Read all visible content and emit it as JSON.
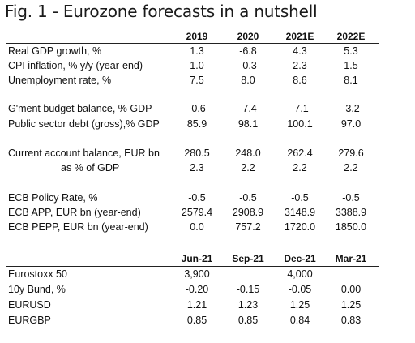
{
  "title": "Fig. 1 - Eurozone forecasts in a nutshell",
  "table1": {
    "headers": [
      "2019",
      "2020",
      "2021E",
      "2022E"
    ],
    "rows": [
      {
        "label": "Real GDP growth, %",
        "values": [
          "1.3",
          "-6.8",
          "4.3",
          "5.3"
        ]
      },
      {
        "label": "CPI inflation, % y/y (year-end)",
        "values": [
          "1.0",
          "-0.3",
          "2.3",
          "1.5"
        ]
      },
      {
        "label": "Unemployment rate, %",
        "values": [
          "7.5",
          "8.0",
          "8.6",
          "8.1"
        ]
      },
      {
        "label": "G'ment budget balance, % GDP",
        "values": [
          "-0.6",
          "-7.4",
          "-7.1",
          "-3.2"
        ]
      },
      {
        "label": "Public sector debt (gross),% GDP",
        "values": [
          "85.9",
          "98.1",
          "100.1",
          "97.0"
        ]
      },
      {
        "label": "Current account balance, EUR bn",
        "values": [
          "280.5",
          "248.0",
          "262.4",
          "279.6"
        ]
      },
      {
        "label": "as % of GDP",
        "values": [
          "2.3",
          "2.2",
          "2.2",
          "2.2"
        ]
      },
      {
        "label": "ECB Policy Rate, %",
        "values": [
          "-0.5",
          "-0.5",
          "-0.5",
          "-0.5"
        ]
      },
      {
        "label": "ECB APP, EUR bn (year-end)",
        "values": [
          "2579.4",
          "2908.9",
          "3148.9",
          "3388.9"
        ]
      },
      {
        "label": "ECB PEPP, EUR bn (year-end)",
        "values": [
          "0.0",
          "757.2",
          "1720.0",
          "1850.0"
        ]
      }
    ]
  },
  "table2": {
    "headers": [
      "Jun-21",
      "Sep-21",
      "Dec-21",
      "Mar-21"
    ],
    "rows": [
      {
        "label": "Eurostoxx 50",
        "values": [
          "3,900",
          "",
          "4,000",
          ""
        ]
      },
      {
        "label": "10y Bund, %",
        "values": [
          "-0.20",
          "-0.15",
          "-0.05",
          "0.00"
        ]
      },
      {
        "label": "EURUSD",
        "values": [
          "1.21",
          "1.23",
          "1.25",
          "1.25"
        ]
      },
      {
        "label": "EURGBP",
        "values": [
          "0.85",
          "0.85",
          "0.84",
          "0.83"
        ]
      }
    ]
  }
}
